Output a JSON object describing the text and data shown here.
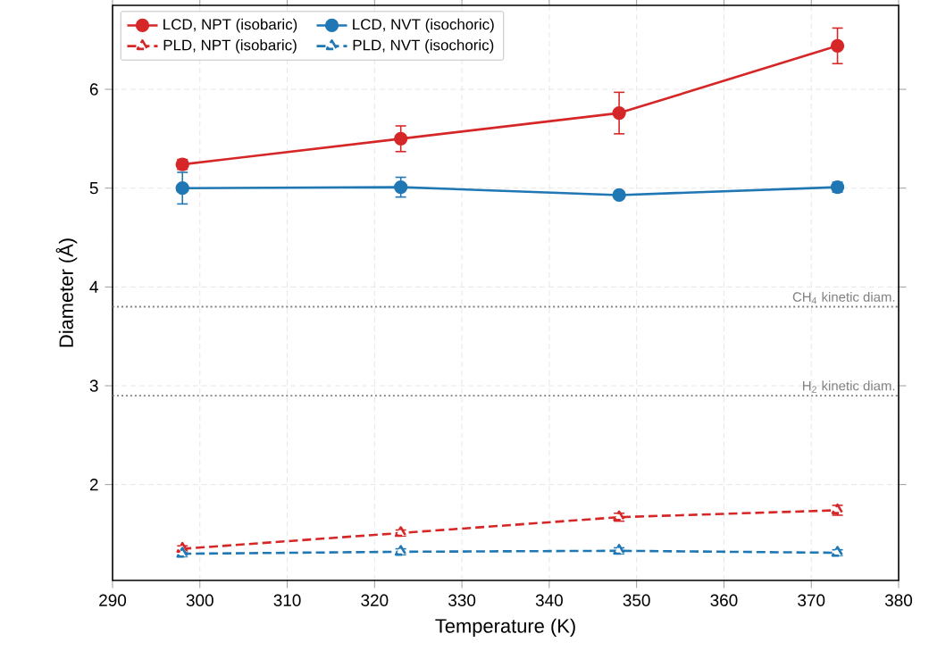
{
  "chart_data": {
    "type": "line",
    "xlabel": "Temperature (K)",
    "ylabel": "Diameter (Å)",
    "x": [
      298,
      323,
      348,
      373
    ],
    "xlim": [
      290,
      380
    ],
    "xticks": [
      290,
      300,
      310,
      320,
      330,
      340,
      350,
      360,
      370,
      380
    ],
    "ylim": [
      1.03,
      6.85
    ],
    "yticks": [
      2,
      3,
      4,
      5,
      6
    ],
    "grid": true,
    "legend": "top left",
    "series": [
      {
        "name": "LCD, NPT (isobaric)",
        "color": "#d62728",
        "marker": "circle",
        "line_style": "solid",
        "values": [
          5.24,
          5.5,
          5.76,
          6.44
        ],
        "errors": [
          0.05,
          0.13,
          0.21,
          0.18
        ]
      },
      {
        "name": "LCD, NVT (isochoric)",
        "color": "#1f77b4",
        "marker": "circle",
        "line_style": "solid",
        "values": [
          5.0,
          5.01,
          4.93,
          5.01
        ],
        "errors": [
          0.16,
          0.1,
          0.03,
          0.05
        ]
      },
      {
        "name": "PLD, NPT (isobaric)",
        "color": "#d62728",
        "marker": "triangle",
        "line_style": "dashed",
        "values": [
          1.35,
          1.51,
          1.67,
          1.74
        ],
        "errors": [
          0.03,
          0.03,
          0.04,
          0.05
        ]
      },
      {
        "name": "PLD, NVT (isochoric)",
        "color": "#1f77b4",
        "marker": "triangle",
        "line_style": "dashed",
        "values": [
          1.3,
          1.32,
          1.33,
          1.31
        ],
        "errors": [
          0.03,
          0.03,
          0.03,
          0.03
        ]
      }
    ],
    "ref_lines": [
      {
        "axis": "y",
        "value": 3.8,
        "label": "CH$_{4}$ kinetic diam.",
        "color": "#808080",
        "line_style": "dotted"
      },
      {
        "axis": "y",
        "value": 2.9,
        "label": "H$_{2}$ kinetic diam.",
        "color": "#808080",
        "line_style": "dotted"
      }
    ]
  }
}
